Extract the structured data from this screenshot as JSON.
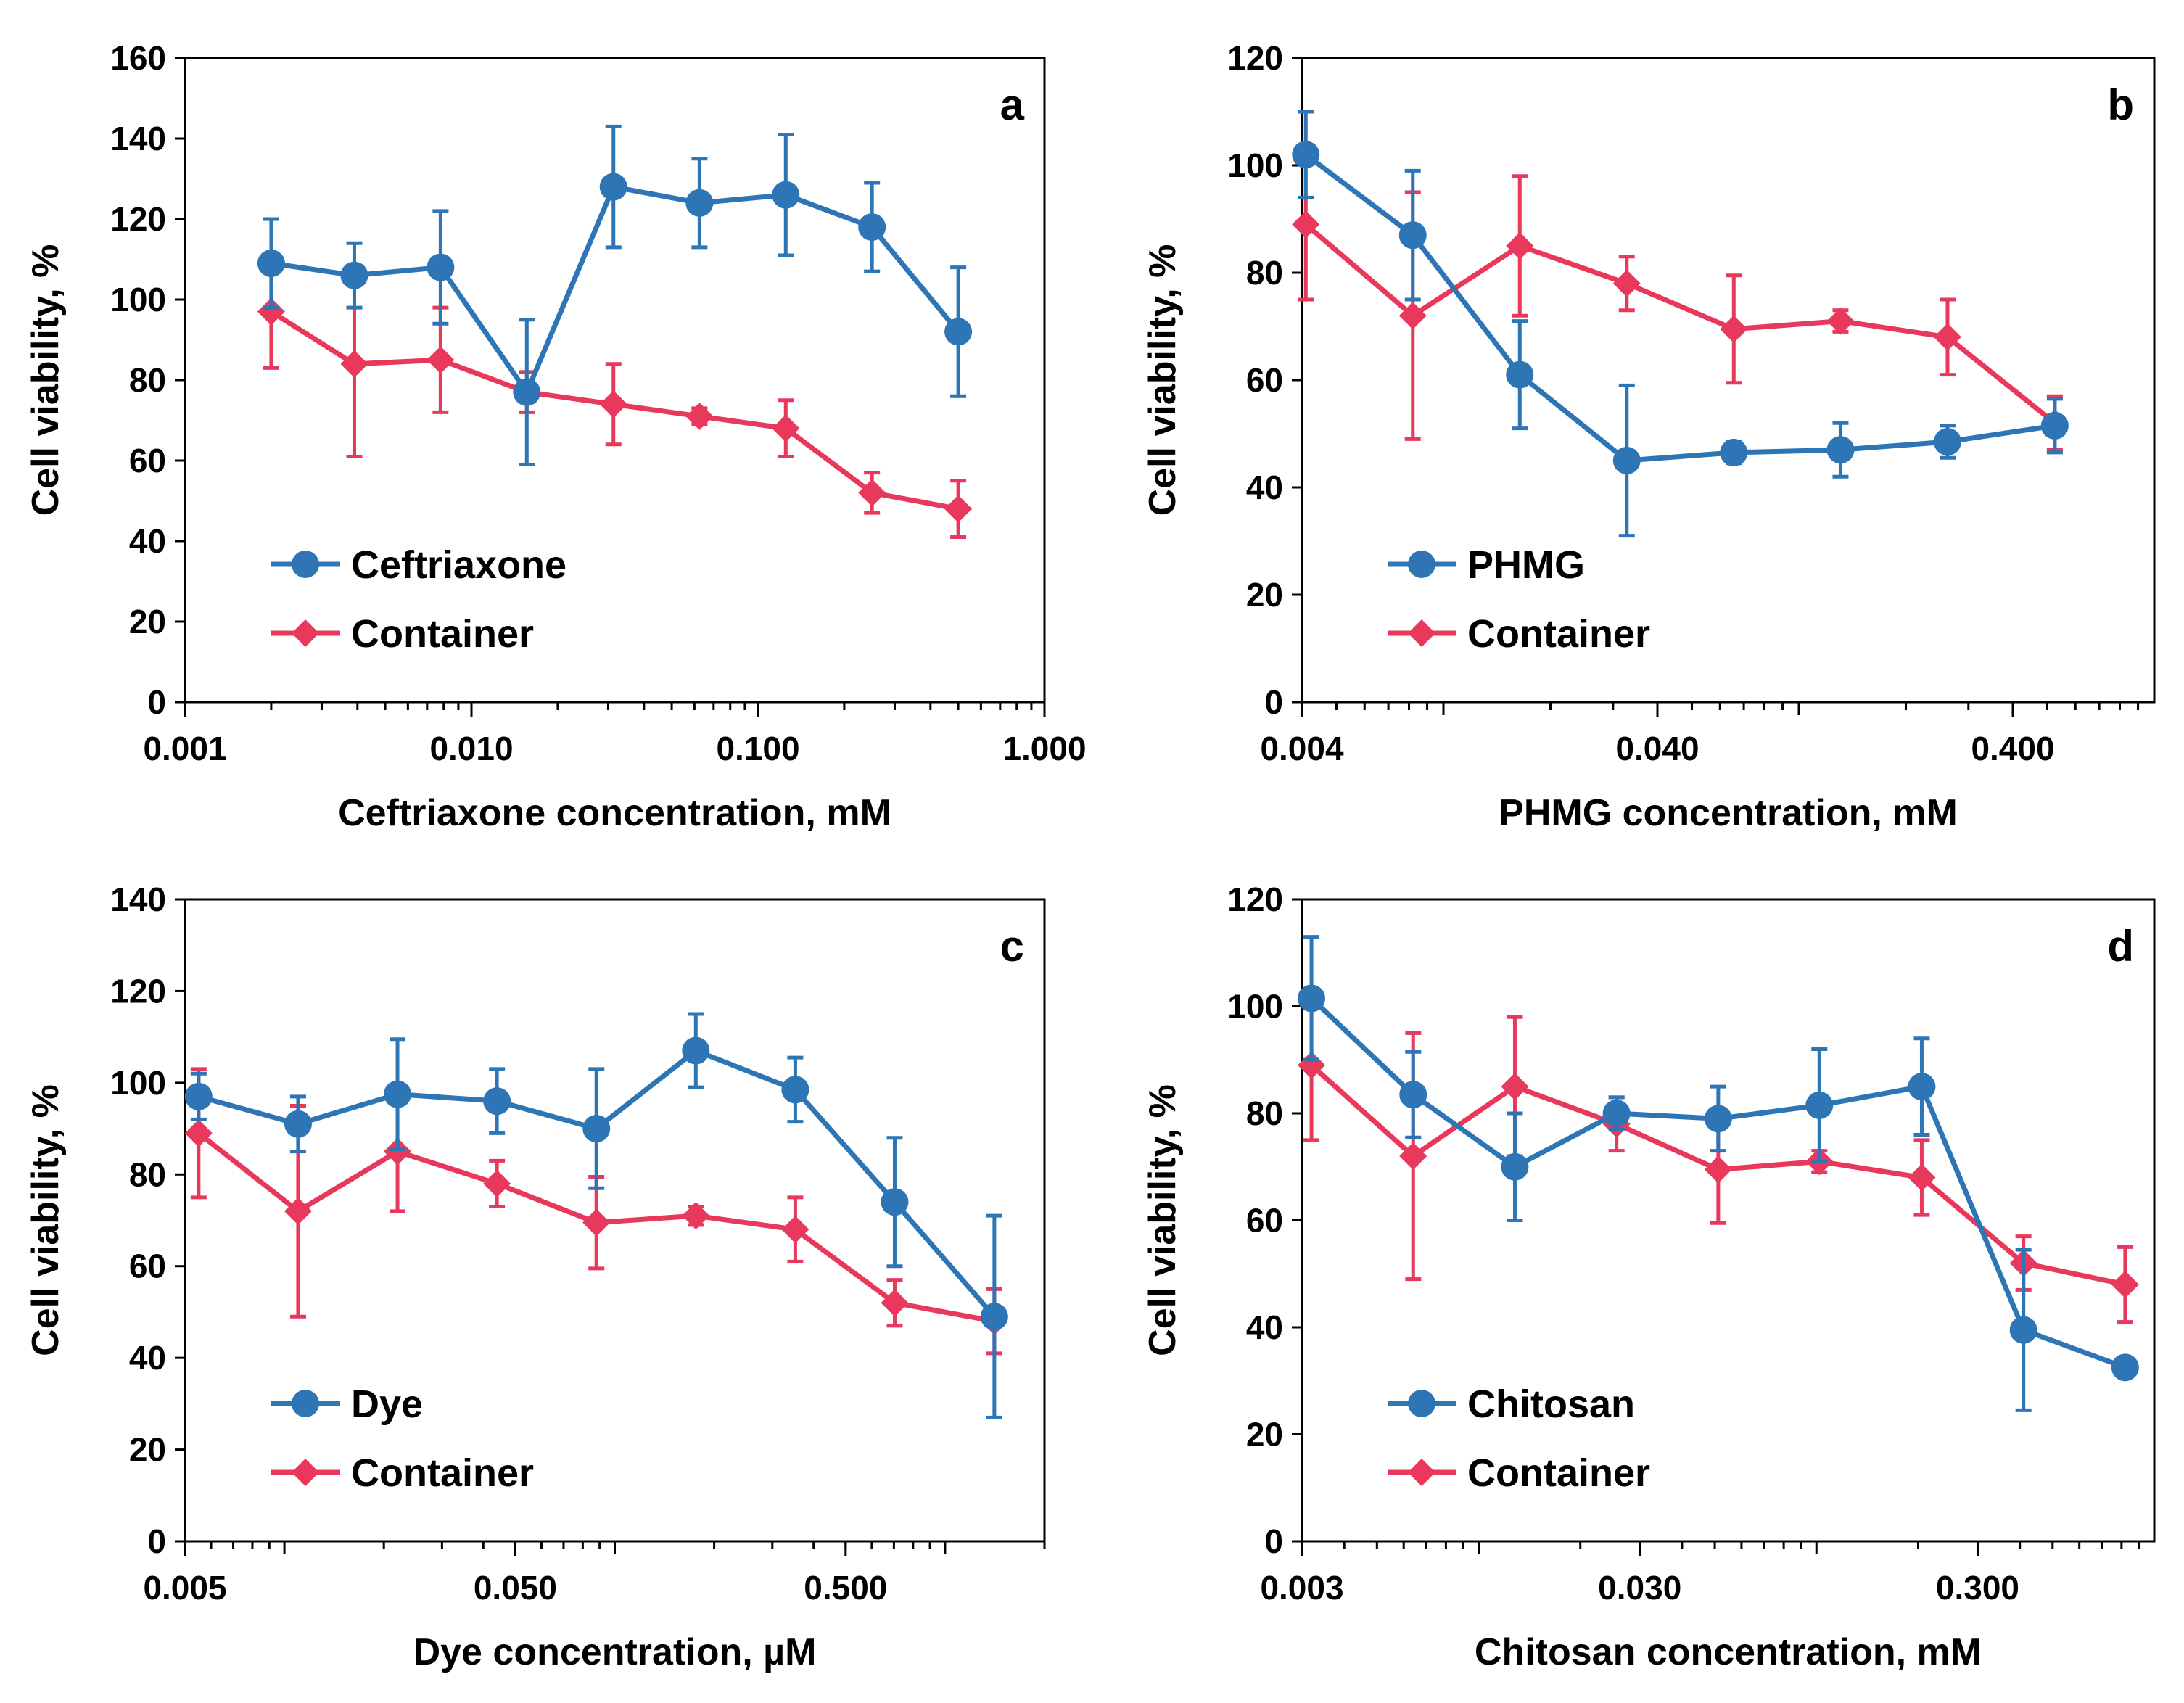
{
  "chart_data": [
    {
      "type": "line",
      "panel_label": "a",
      "xscale": "log",
      "xlim": [
        0.001,
        1.0
      ],
      "xticks": [
        0.001,
        0.01,
        0.1,
        1.0
      ],
      "xtick_labels": [
        "0.001",
        "0.010",
        "0.100",
        "1.000"
      ],
      "ylim": [
        0,
        160
      ],
      "yticks": [
        0,
        20,
        40,
        60,
        80,
        100,
        120,
        140,
        160
      ],
      "xlabel": "Ceftriaxone concentration, mM",
      "ylabel": "Cell viability, %",
      "legend_position": "lower-left",
      "series": [
        {
          "name": "Ceftriaxone",
          "color": "#2E75B6",
          "marker": "circle",
          "x": [
            0.002,
            0.0039,
            0.0078,
            0.0156,
            0.0313,
            0.0625,
            0.125,
            0.25,
            0.5
          ],
          "y": [
            109,
            106,
            108,
            77,
            128,
            124,
            126,
            118,
            92
          ],
          "err": [
            11,
            8,
            14,
            18,
            15,
            11,
            15,
            11,
            16
          ]
        },
        {
          "name": "Container",
          "color": "#E8385C",
          "marker": "diamond",
          "x": [
            0.002,
            0.0039,
            0.0078,
            0.0156,
            0.0313,
            0.0625,
            0.125,
            0.25,
            0.5
          ],
          "y": [
            97,
            84,
            85,
            77,
            74,
            71,
            68,
            52,
            48
          ],
          "err": [
            14,
            23,
            13,
            5,
            10,
            2,
            7,
            5,
            7
          ]
        }
      ]
    },
    {
      "type": "line",
      "panel_label": "b",
      "xscale": "log",
      "xlim": [
        0.004,
        1.0
      ],
      "xticks": [
        0.004,
        0.04,
        0.4
      ],
      "xtick_labels": [
        "0.004",
        "0.040",
        "0.400"
      ],
      "ylim": [
        0,
        120
      ],
      "yticks": [
        0,
        20,
        40,
        60,
        80,
        100,
        120
      ],
      "xlabel": "PHMG concentration, mM",
      "ylabel": "Cell viability, %",
      "legend_position": "lower-left",
      "series": [
        {
          "name": "PHMG",
          "color": "#2E75B6",
          "marker": "circle",
          "x": [
            0.0041,
            0.0082,
            0.0164,
            0.0328,
            0.0656,
            0.131,
            0.262,
            0.525
          ],
          "y": [
            102,
            87,
            61,
            45,
            46.5,
            47,
            48.5,
            51.5
          ],
          "err": [
            8,
            12,
            10,
            14,
            2,
            5,
            3,
            5
          ]
        },
        {
          "name": "Container",
          "color": "#E8385C",
          "marker": "diamond",
          "x": [
            0.0041,
            0.0082,
            0.0164,
            0.0328,
            0.0656,
            0.131,
            0.262,
            0.525
          ],
          "y": [
            89,
            72,
            85,
            78,
            69.5,
            71,
            68,
            52
          ],
          "err": [
            14,
            23,
            13,
            5,
            10,
            2,
            7,
            5
          ]
        }
      ]
    },
    {
      "type": "line",
      "panel_label": "c",
      "xscale": "log",
      "xlim": [
        0.005,
        2.0
      ],
      "xticks": [
        0.005,
        0.05,
        0.5
      ],
      "xtick_labels": [
        "0.005",
        "0.050",
        "0.500"
      ],
      "ylim": [
        0,
        140
      ],
      "yticks": [
        0,
        20,
        40,
        60,
        80,
        100,
        120,
        140
      ],
      "xlabel": "Dye concentration, µM",
      "ylabel": "Cell viability, %",
      "legend_position": "lower-left",
      "series": [
        {
          "name": "Dye",
          "color": "#2E75B6",
          "marker": "circle",
          "x": [
            0.0055,
            0.011,
            0.022,
            0.044,
            0.088,
            0.176,
            0.352,
            0.704,
            1.41
          ],
          "y": [
            97,
            91,
            97.5,
            96,
            90,
            107,
            98.5,
            74,
            49
          ],
          "err": [
            5,
            6,
            12,
            7,
            13,
            8,
            7,
            14,
            22
          ]
        },
        {
          "name": "Container",
          "color": "#E8385C",
          "marker": "diamond",
          "x": [
            0.0055,
            0.011,
            0.022,
            0.044,
            0.088,
            0.176,
            0.352,
            0.704,
            1.41
          ],
          "y": [
            89,
            72,
            85,
            78,
            69.5,
            71,
            68,
            52,
            48
          ],
          "err": [
            14,
            23,
            13,
            5,
            10,
            2,
            7,
            5,
            7
          ]
        }
      ]
    },
    {
      "type": "line",
      "panel_label": "d",
      "xscale": "log",
      "xlim": [
        0.003,
        1.0
      ],
      "xticks": [
        0.003,
        0.03,
        0.3
      ],
      "xtick_labels": [
        "0.003",
        "0.030",
        "0.300"
      ],
      "ylim": [
        0,
        120
      ],
      "yticks": [
        0,
        20,
        40,
        60,
        80,
        100,
        120
      ],
      "xlabel": "Chitosan concentration, mM",
      "ylabel": "Cell viability, %",
      "legend_position": "lower-left",
      "series": [
        {
          "name": "Chitosan",
          "color": "#2E75B6",
          "marker": "circle",
          "x": [
            0.0032,
            0.0064,
            0.0128,
            0.0256,
            0.0512,
            0.102,
            0.205,
            0.41,
            0.82
          ],
          "y": [
            101.5,
            83.5,
            70,
            80,
            79,
            81.5,
            85,
            39.5,
            32.5
          ],
          "err": [
            11.5,
            8,
            10,
            3,
            6,
            10.5,
            9,
            15,
            1
          ]
        },
        {
          "name": "Container",
          "color": "#E8385C",
          "marker": "diamond",
          "x": [
            0.0032,
            0.0064,
            0.0128,
            0.0256,
            0.0512,
            0.102,
            0.205,
            0.41,
            0.82
          ],
          "y": [
            89,
            72,
            85,
            78,
            69.5,
            71,
            68,
            52,
            48
          ],
          "err": [
            14,
            23,
            13,
            5,
            10,
            2,
            7,
            5,
            7
          ]
        }
      ]
    }
  ]
}
